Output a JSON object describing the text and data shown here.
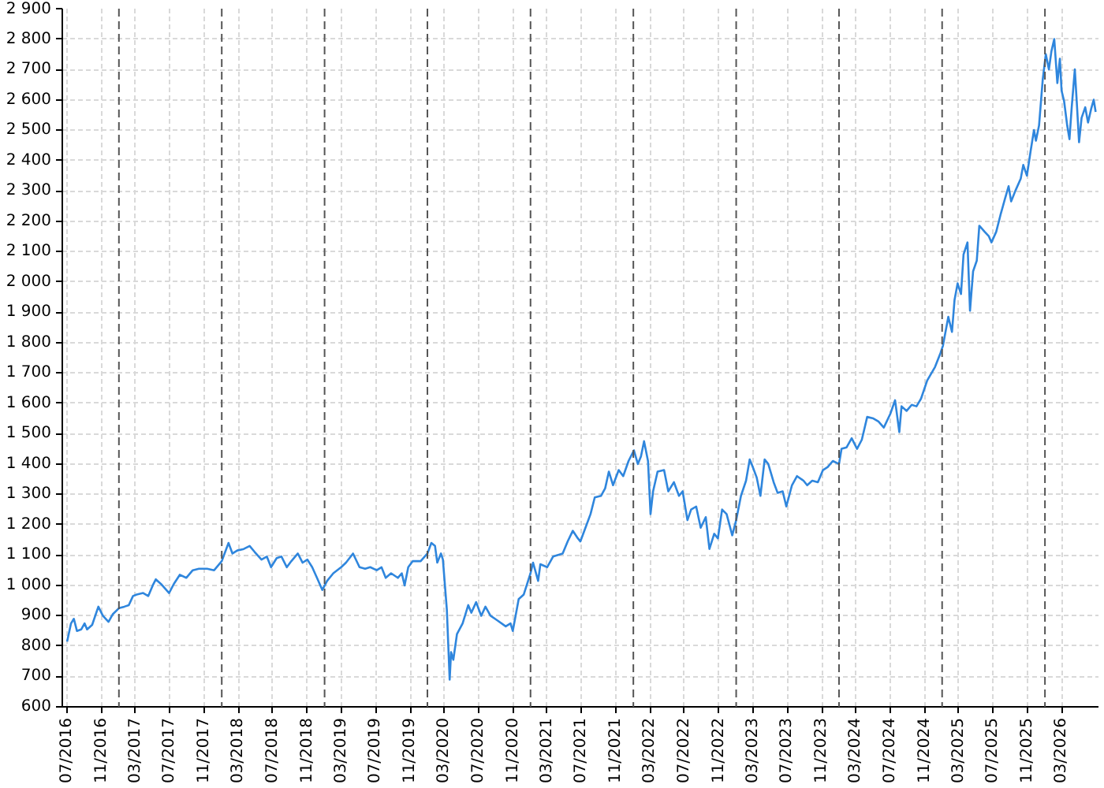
{
  "chart_data": {
    "type": "line",
    "x": [
      "2016-07-01",
      "2016-07-15",
      "2016-07-25",
      "2016-08-05",
      "2016-08-20",
      "2016-09-01",
      "2016-09-10",
      "2016-09-28",
      "2016-10-20",
      "2016-11-05",
      "2016-11-25",
      "2016-12-10",
      "2017-01-01",
      "2017-01-20",
      "2017-02-05",
      "2017-02-20",
      "2017-03-05",
      "2017-03-28",
      "2017-04-15",
      "2017-05-01",
      "2017-05-12",
      "2017-05-30",
      "2017-06-28",
      "2017-07-15",
      "2017-08-05",
      "2017-08-28",
      "2017-09-20",
      "2017-10-12",
      "2017-11-10",
      "2017-12-05",
      "2018-01-01",
      "2018-01-25",
      "2018-02-08",
      "2018-02-25",
      "2018-03-20",
      "2018-04-10",
      "2018-04-28",
      "2018-05-22",
      "2018-06-10",
      "2018-06-25",
      "2018-07-15",
      "2018-08-01",
      "2018-08-20",
      "2018-09-05",
      "2018-09-28",
      "2018-10-15",
      "2018-11-01",
      "2018-11-18",
      "2018-12-05",
      "2018-12-24",
      "2019-01-10",
      "2019-02-01",
      "2019-03-01",
      "2019-03-18",
      "2019-04-12",
      "2019-05-05",
      "2019-05-25",
      "2019-06-12",
      "2019-07-05",
      "2019-07-22",
      "2019-08-06",
      "2019-08-25",
      "2019-09-18",
      "2019-10-02",
      "2019-10-12",
      "2019-10-25",
      "2019-11-10",
      "2019-12-08",
      "2020-01-01",
      "2020-01-15",
      "2020-01-28",
      "2020-02-05",
      "2020-02-18",
      "2020-02-25",
      "2020-03-10",
      "2020-03-20",
      "2020-03-25",
      "2020-04-02",
      "2020-04-15",
      "2020-05-05",
      "2020-05-25",
      "2020-06-05",
      "2020-06-22",
      "2020-07-10",
      "2020-07-25",
      "2020-08-12",
      "2020-09-05",
      "2020-10-05",
      "2020-10-22",
      "2020-10-30",
      "2020-11-20",
      "2020-12-08",
      "2021-01-01",
      "2021-01-10",
      "2021-01-28",
      "2021-02-05",
      "2021-03-01",
      "2021-03-22",
      "2021-04-25",
      "2021-05-13",
      "2021-05-31",
      "2021-06-18",
      "2021-06-27",
      "2021-07-15",
      "2021-08-02",
      "2021-08-17",
      "2021-09-08",
      "2021-09-23",
      "2021-10-06",
      "2021-10-21",
      "2021-11-10",
      "2021-11-26",
      "2021-12-15",
      "2022-01-03",
      "2022-01-17",
      "2022-01-28",
      "2022-02-08",
      "2022-02-22",
      "2022-03-03",
      "2022-03-12",
      "2022-03-28",
      "2022-04-20",
      "2022-05-05",
      "2022-05-25",
      "2022-06-12",
      "2022-06-25",
      "2022-07-12",
      "2022-07-25",
      "2022-08-12",
      "2022-08-28",
      "2022-09-15",
      "2022-09-28",
      "2022-10-15",
      "2022-10-28",
      "2022-11-12",
      "2022-11-28",
      "2022-12-18",
      "2023-01-01",
      "2023-01-18",
      "2023-02-05",
      "2023-02-18",
      "2023-03-01",
      "2023-03-15",
      "2023-03-28",
      "2023-04-12",
      "2023-04-25",
      "2023-05-14",
      "2023-05-28",
      "2023-06-15",
      "2023-06-28",
      "2023-07-18",
      "2023-08-05",
      "2023-08-28",
      "2023-09-10",
      "2023-09-28",
      "2023-10-18",
      "2023-11-05",
      "2023-11-22",
      "2023-12-10",
      "2024-01-01",
      "2024-01-10",
      "2024-01-28",
      "2024-02-15",
      "2024-03-05",
      "2024-03-22",
      "2024-04-10",
      "2024-05-02",
      "2024-05-20",
      "2024-06-08",
      "2024-07-01",
      "2024-07-18",
      "2024-08-02",
      "2024-08-10",
      "2024-08-28",
      "2024-09-15",
      "2024-10-02",
      "2024-10-18",
      "2024-11-09",
      "2024-12-07",
      "2024-12-26",
      "2025-01-04",
      "2025-01-23",
      "2025-02-05",
      "2025-02-14",
      "2025-02-25",
      "2025-03-09",
      "2025-03-18",
      "2025-04-01",
      "2025-04-10",
      "2025-04-21",
      "2025-05-04",
      "2025-05-13",
      "2025-06-01",
      "2025-06-16",
      "2025-06-25",
      "2025-07-12",
      "2025-07-27",
      "2025-08-11",
      "2025-08-25",
      "2025-09-03",
      "2025-09-18",
      "2025-10-07",
      "2025-10-16",
      "2025-10-29",
      "2025-11-11",
      "2025-11-23",
      "2025-11-30",
      "2025-12-11",
      "2025-12-24",
      "2026-01-04",
      "2026-01-15",
      "2026-01-24",
      "2026-02-03",
      "2026-02-14",
      "2026-02-23",
      "2026-03-01",
      "2026-03-10",
      "2026-03-21",
      "2026-03-29",
      "2026-04-06",
      "2026-04-17",
      "2026-04-25",
      "2026-05-02",
      "2026-05-11",
      "2026-05-24",
      "2026-06-03",
      "2026-06-14",
      "2026-06-23",
      "2026-06-30"
    ],
    "series": [
      {
        "color": "#2f86dd",
        "values": [
          815,
          875,
          890,
          850,
          855,
          875,
          855,
          870,
          930,
          900,
          880,
          905,
          925,
          930,
          935,
          965,
          970,
          975,
          965,
          1000,
          1020,
          1005,
          975,
          1005,
          1035,
          1025,
          1050,
          1055,
          1055,
          1050,
          1080,
          1140,
          1105,
          1115,
          1120,
          1130,
          1110,
          1085,
          1095,
          1060,
          1090,
          1095,
          1060,
          1080,
          1105,
          1075,
          1085,
          1060,
          1025,
          985,
          1015,
          1040,
          1060,
          1075,
          1105,
          1060,
          1055,
          1060,
          1050,
          1060,
          1025,
          1040,
          1025,
          1040,
          1000,
          1060,
          1080,
          1080,
          1105,
          1140,
          1130,
          1075,
          1105,
          1085,
          920,
          690,
          780,
          755,
          840,
          875,
          935,
          910,
          945,
          900,
          930,
          900,
          885,
          865,
          875,
          850,
          955,
          970,
          1040,
          1075,
          1015,
          1070,
          1060,
          1095,
          1105,
          1145,
          1180,
          1155,
          1145,
          1190,
          1235,
          1290,
          1295,
          1320,
          1375,
          1330,
          1380,
          1360,
          1410,
          1445,
          1400,
          1425,
          1475,
          1410,
          1235,
          1310,
          1375,
          1380,
          1310,
          1340,
          1295,
          1310,
          1215,
          1250,
          1260,
          1190,
          1225,
          1120,
          1170,
          1155,
          1250,
          1235,
          1165,
          1215,
          1295,
          1345,
          1415,
          1390,
          1355,
          1295,
          1415,
          1400,
          1340,
          1305,
          1310,
          1260,
          1330,
          1360,
          1345,
          1330,
          1345,
          1340,
          1380,
          1390,
          1410,
          1400,
          1450,
          1455,
          1485,
          1450,
          1480,
          1555,
          1550,
          1540,
          1520,
          1565,
          1610,
          1505,
          1590,
          1575,
          1595,
          1590,
          1615,
          1675,
          1720,
          1765,
          1790,
          1885,
          1835,
          1940,
          1995,
          1960,
          2090,
          2130,
          1905,
          2035,
          2070,
          2185,
          2165,
          2150,
          2130,
          2165,
          2220,
          2270,
          2315,
          2265,
          2300,
          2340,
          2385,
          2350,
          2430,
          2500,
          2465,
          2515,
          2665,
          2750,
          2700,
          2760,
          2800,
          2655,
          2735,
          2630,
          2595,
          2515,
          2470,
          2575,
          2700,
          2575,
          2460,
          2540,
          2575,
          2525,
          2570,
          2600,
          2560
        ]
      }
    ],
    "xlim": [
      "2016-06-14",
      "2026-07-10"
    ],
    "xticks": [
      {
        "value": "2016-07-01",
        "label": "07/2016"
      },
      {
        "value": "2016-11-01",
        "label": "11/2016"
      },
      {
        "value": "2017-03-01",
        "label": "03/2017"
      },
      {
        "value": "2017-07-01",
        "label": "07/2017"
      },
      {
        "value": "2017-11-01",
        "label": "11/2017"
      },
      {
        "value": "2018-03-01",
        "label": "03/2018"
      },
      {
        "value": "2018-07-01",
        "label": "07/2018"
      },
      {
        "value": "2018-11-01",
        "label": "11/2018"
      },
      {
        "value": "2019-03-01",
        "label": "03/2019"
      },
      {
        "value": "2019-07-01",
        "label": "07/2019"
      },
      {
        "value": "2019-11-01",
        "label": "11/2019"
      },
      {
        "value": "2020-03-01",
        "label": "03/2020"
      },
      {
        "value": "2020-07-01",
        "label": "07/2020"
      },
      {
        "value": "2020-11-01",
        "label": "11/2020"
      },
      {
        "value": "2021-03-01",
        "label": "03/2021"
      },
      {
        "value": "2021-07-01",
        "label": "07/2021"
      },
      {
        "value": "2021-11-01",
        "label": "11/2021"
      },
      {
        "value": "2022-03-01",
        "label": "03/2022"
      },
      {
        "value": "2022-07-01",
        "label": "07/2022"
      },
      {
        "value": "2022-11-01",
        "label": "11/2022"
      },
      {
        "value": "2023-03-01",
        "label": "03/2023"
      },
      {
        "value": "2023-07-01",
        "label": "07/2023"
      },
      {
        "value": "2023-11-01",
        "label": "11/2023"
      },
      {
        "value": "2024-03-01",
        "label": "03/2024"
      },
      {
        "value": "2024-07-01",
        "label": "07/2024"
      },
      {
        "value": "2024-11-01",
        "label": "11/2024"
      },
      {
        "value": "2025-03-01",
        "label": "03/2025"
      },
      {
        "value": "2025-07-01",
        "label": "07/2025"
      },
      {
        "value": "2025-11-01",
        "label": "11/2025"
      },
      {
        "value": "2026-03-01",
        "label": "03/2026"
      }
    ],
    "ylim": [
      600,
      2900
    ],
    "yticks": [
      600,
      700,
      800,
      900,
      {
        "value": 1000,
        "label": "1 000"
      },
      {
        "value": 1100,
        "label": "1 100"
      },
      {
        "value": 1200,
        "label": "1 200"
      },
      {
        "value": 1300,
        "label": "1 300"
      },
      {
        "value": 1400,
        "label": "1 400"
      },
      {
        "value": 1500,
        "label": "1 500"
      },
      {
        "value": 1600,
        "label": "1 600"
      },
      {
        "value": 1700,
        "label": "1 700"
      },
      {
        "value": 1800,
        "label": "1 800"
      },
      {
        "value": 1900,
        "label": "1 900"
      },
      {
        "value": 2000,
        "label": "2 000"
      },
      {
        "value": 2100,
        "label": "2 100"
      },
      {
        "value": 2200,
        "label": "2 200"
      },
      {
        "value": 2300,
        "label": "2 300"
      },
      {
        "value": 2400,
        "label": "2 400"
      },
      {
        "value": 2500,
        "label": "2 500"
      },
      {
        "value": 2600,
        "label": "2 600"
      },
      {
        "value": 2700,
        "label": "2 700"
      },
      {
        "value": 2800,
        "label": "2 800"
      },
      {
        "value": 2900,
        "label": "2 900"
      }
    ],
    "grid": true,
    "ref_lines": [
      {
        "axis": "x",
        "value": "2017-01-01",
        "color": "#555555",
        "line_style": "dashed"
      },
      {
        "axis": "x",
        "value": "2018-01-01",
        "color": "#555555",
        "line_style": "dashed"
      },
      {
        "axis": "x",
        "value": "2019-01-01",
        "color": "#555555",
        "line_style": "dashed"
      },
      {
        "axis": "x",
        "value": "2020-01-01",
        "color": "#555555",
        "line_style": "dashed"
      },
      {
        "axis": "x",
        "value": "2021-01-01",
        "color": "#555555",
        "line_style": "dashed"
      },
      {
        "axis": "x",
        "value": "2022-01-01",
        "color": "#555555",
        "line_style": "dashed"
      },
      {
        "axis": "x",
        "value": "2023-01-01",
        "color": "#555555",
        "line_style": "dashed"
      },
      {
        "axis": "x",
        "value": "2024-01-01",
        "color": "#555555",
        "line_style": "dashed"
      },
      {
        "axis": "x",
        "value": "2025-01-01",
        "color": "#555555",
        "line_style": "dashed"
      },
      {
        "axis": "x",
        "value": "2026-01-01",
        "color": "#555555",
        "line_style": "dashed"
      }
    ]
  }
}
